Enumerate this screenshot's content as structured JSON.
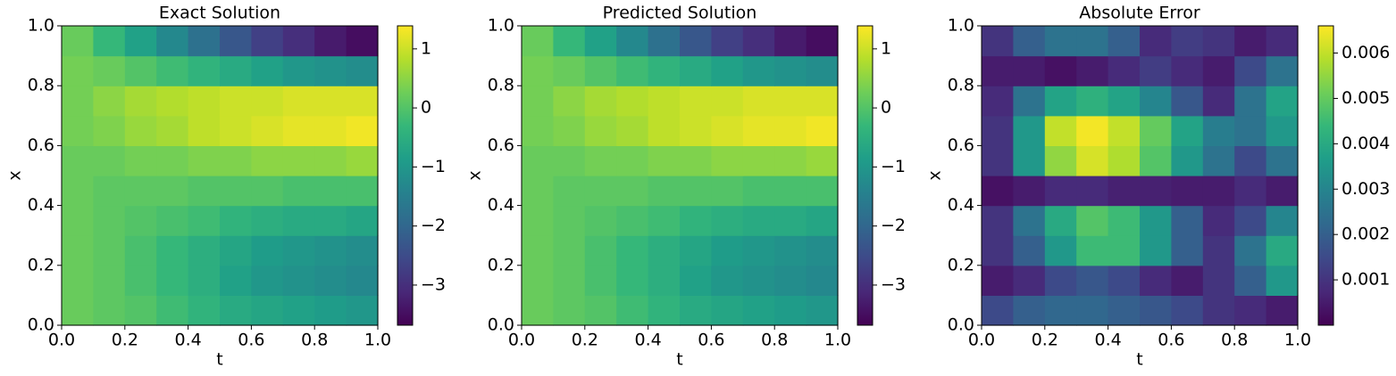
{
  "chart_data": [
    {
      "type": "heatmap",
      "title": "Exact Solution",
      "xlabel": "t",
      "ylabel": "x",
      "colormap": "viridis",
      "xlim": [
        0,
        1
      ],
      "ylim": [
        0,
        1
      ],
      "clim": [
        -3.68,
        1.39
      ],
      "xticks": [
        {
          "value": 0,
          "label": "0.0"
        },
        0.2,
        0.4,
        0.6,
        0.8,
        {
          "value": 1,
          "label": "1.0"
        }
      ],
      "yticks": [
        {
          "value": 0,
          "label": "0.0"
        },
        0.2,
        0.4,
        0.6,
        0.8,
        {
          "value": 1,
          "label": "1.0"
        }
      ],
      "cticks": [
        {
          "value": -3,
          "label": "−3"
        },
        {
          "value": -2,
          "label": "−2"
        },
        {
          "value": -1,
          "label": "−1"
        },
        0,
        1
      ],
      "z": [
        [
          0.2,
          0.1,
          0.0,
          -0.2,
          -0.4,
          -0.6,
          -0.7,
          -0.8,
          -0.9,
          -1.0
        ],
        [
          0.2,
          0.1,
          -0.1,
          -0.3,
          -0.5,
          -0.8,
          -1.0,
          -1.1,
          -1.2,
          -1.3
        ],
        [
          0.2,
          0.1,
          -0.1,
          -0.3,
          -0.5,
          -0.7,
          -0.9,
          -1.0,
          -1.1,
          -1.2
        ],
        [
          0.2,
          0.1,
          0.0,
          -0.1,
          -0.2,
          -0.4,
          -0.5,
          -0.6,
          -0.6,
          -0.7
        ],
        [
          0.2,
          0.1,
          0.1,
          0.1,
          0.0,
          0.0,
          0.0,
          -0.1,
          -0.1,
          -0.1
        ],
        [
          0.2,
          0.2,
          0.3,
          0.3,
          0.4,
          0.4,
          0.5,
          0.5,
          0.5,
          0.6
        ],
        [
          0.3,
          0.4,
          0.6,
          0.7,
          0.9,
          1.0,
          1.1,
          1.2,
          1.2,
          1.3
        ],
        [
          0.3,
          0.5,
          0.7,
          0.8,
          0.9,
          1.0,
          1.0,
          1.1,
          1.1,
          1.1
        ],
        [
          0.3,
          0.2,
          0.0,
          -0.2,
          -0.4,
          -0.6,
          -0.8,
          -1.0,
          -1.1,
          -1.2
        ],
        [
          0.2,
          -0.3,
          -0.8,
          -1.3,
          -1.8,
          -2.3,
          -2.7,
          -3.0,
          -3.3,
          -3.5
        ]
      ]
    },
    {
      "type": "heatmap",
      "title": "Predicted Solution",
      "xlabel": "t",
      "ylabel": "x",
      "colormap": "viridis",
      "xlim": [
        0,
        1
      ],
      "ylim": [
        0,
        1
      ],
      "clim": [
        -3.68,
        1.39
      ],
      "xticks": [
        {
          "value": 0,
          "label": "0.0"
        },
        0.2,
        0.4,
        0.6,
        0.8,
        {
          "value": 1,
          "label": "1.0"
        }
      ],
      "yticks": [
        {
          "value": 0,
          "label": "0.0"
        },
        0.2,
        0.4,
        0.6,
        0.8,
        {
          "value": 1,
          "label": "1.0"
        }
      ],
      "cticks": [
        {
          "value": -3,
          "label": "−3"
        },
        {
          "value": -2,
          "label": "−2"
        },
        {
          "value": -1,
          "label": "−1"
        },
        0,
        1
      ],
      "z": [
        [
          0.2,
          0.1,
          0.0,
          -0.2,
          -0.4,
          -0.6,
          -0.7,
          -0.8,
          -0.9,
          -1.0
        ],
        [
          0.2,
          0.1,
          -0.1,
          -0.3,
          -0.5,
          -0.8,
          -1.0,
          -1.1,
          -1.2,
          -1.3
        ],
        [
          0.2,
          0.1,
          -0.1,
          -0.3,
          -0.5,
          -0.7,
          -0.9,
          -1.0,
          -1.1,
          -1.2
        ],
        [
          0.2,
          0.1,
          0.0,
          -0.1,
          -0.2,
          -0.4,
          -0.5,
          -0.6,
          -0.6,
          -0.7
        ],
        [
          0.2,
          0.1,
          0.1,
          0.1,
          0.0,
          0.0,
          0.0,
          -0.1,
          -0.1,
          -0.1
        ],
        [
          0.2,
          0.2,
          0.3,
          0.3,
          0.4,
          0.4,
          0.5,
          0.5,
          0.5,
          0.6
        ],
        [
          0.3,
          0.4,
          0.6,
          0.7,
          0.9,
          1.0,
          1.1,
          1.2,
          1.2,
          1.3
        ],
        [
          0.3,
          0.5,
          0.7,
          0.8,
          0.9,
          1.0,
          1.0,
          1.1,
          1.1,
          1.1
        ],
        [
          0.3,
          0.2,
          0.0,
          -0.2,
          -0.4,
          -0.6,
          -0.8,
          -1.0,
          -1.1,
          -1.2
        ],
        [
          0.2,
          -0.3,
          -0.8,
          -1.3,
          -1.8,
          -2.3,
          -2.7,
          -3.0,
          -3.3,
          -3.5
        ]
      ]
    },
    {
      "type": "heatmap",
      "title": "Absolute Error",
      "xlabel": "t",
      "ylabel": "x",
      "colormap": "viridis",
      "xlim": [
        0,
        1
      ],
      "ylim": [
        0,
        1
      ],
      "clim": [
        0,
        0.0066
      ],
      "xticks": [
        {
          "value": 0,
          "label": "0.0"
        },
        0.2,
        0.4,
        0.6,
        0.8,
        {
          "value": 1,
          "label": "1.0"
        }
      ],
      "yticks": [
        {
          "value": 0,
          "label": "0.0"
        },
        0.2,
        0.4,
        0.6,
        0.8,
        {
          "value": 1,
          "label": "1.0"
        }
      ],
      "cticks": [
        0.001,
        0.002,
        0.003,
        0.004,
        0.005,
        0.006
      ],
      "z": [
        [
          0.0015,
          0.002,
          0.0022,
          0.0022,
          0.002,
          0.0018,
          0.0015,
          0.001,
          0.0008,
          0.0005
        ],
        [
          0.0005,
          0.0008,
          0.0015,
          0.0018,
          0.0015,
          0.0008,
          0.0005,
          0.001,
          0.002,
          0.0035
        ],
        [
          0.001,
          0.002,
          0.0035,
          0.0045,
          0.0045,
          0.0035,
          0.002,
          0.001,
          0.0025,
          0.004
        ],
        [
          0.001,
          0.0025,
          0.004,
          0.0048,
          0.0045,
          0.0035,
          0.002,
          0.0008,
          0.0015,
          0.003
        ],
        [
          0.0003,
          0.0005,
          0.0008,
          0.0008,
          0.0006,
          0.0006,
          0.0005,
          0.0005,
          0.0008,
          0.0005
        ],
        [
          0.001,
          0.0035,
          0.0055,
          0.0062,
          0.0058,
          0.0048,
          0.0035,
          0.0025,
          0.0015,
          0.0025
        ],
        [
          0.001,
          0.0035,
          0.006,
          0.0065,
          0.006,
          0.005,
          0.0038,
          0.0028,
          0.0025,
          0.0035
        ],
        [
          0.0008,
          0.0025,
          0.0038,
          0.0042,
          0.0038,
          0.003,
          0.0018,
          0.0008,
          0.0025,
          0.0038
        ],
        [
          0.0005,
          0.0005,
          0.0003,
          0.0005,
          0.0008,
          0.0012,
          0.0008,
          0.0005,
          0.0015,
          0.0025
        ],
        [
          0.001,
          0.002,
          0.0025,
          0.0025,
          0.002,
          0.0008,
          0.0012,
          0.001,
          0.0005,
          0.0008
        ]
      ]
    }
  ]
}
